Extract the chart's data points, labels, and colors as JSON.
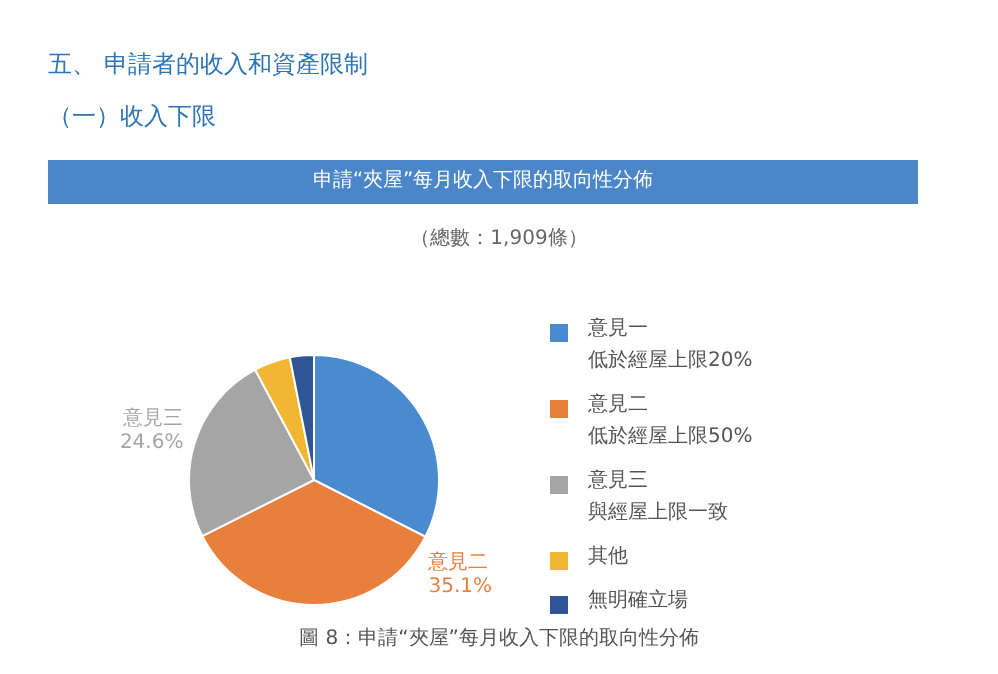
{
  "chart_data": {
    "type": "pie",
    "title": "申請“夾屋”每月收入下限的取向性分佈",
    "subtitle": "（總數：1,909條）",
    "annotations": [
      "五、 申請者的收入和資產限制",
      "（一）收入下限",
      "圖 8：申請“夾屋”每月收入下限的取向性分佈",
      "低於經屋上限20%",
      "低於經屋上限50%",
      "與經屋上限一致"
    ],
    "categories": [
      "意見一",
      "意見二",
      "意見三",
      "其他",
      "無明確立場"
    ],
    "values": [
      32.5,
      35.1,
      24.6,
      4.7,
      3.1
    ],
    "value_labels": [
      null,
      "35.1%",
      "24.6%",
      null,
      null
    ],
    "colors": [
      "#4a8bd0",
      "#e97f3c",
      "#a5a5a5",
      "#f2b632",
      "#2f5597"
    ],
    "legend": "right"
  }
}
